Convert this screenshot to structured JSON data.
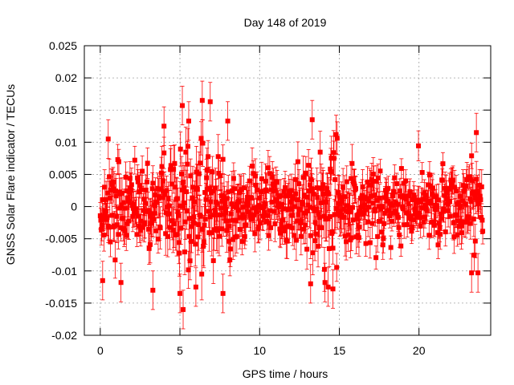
{
  "chart_data": {
    "type": "scatter",
    "title": "Day 148 of 2019",
    "xlabel": "GPS time / hours",
    "ylabel": "GNSS Solar Flare indicator / TECUs",
    "xlim": [
      -1,
      24.5
    ],
    "ylim": [
      -0.02,
      0.025
    ],
    "x_ticks": [
      0,
      5,
      10,
      15,
      20
    ],
    "x_tick_labels": [
      "0",
      "5",
      "10",
      "15",
      "20"
    ],
    "y_ticks": [
      -0.02,
      -0.015,
      -0.01,
      -0.005,
      0,
      0.005,
      0.01,
      0.015,
      0.02,
      0.025
    ],
    "y_tick_labels": [
      "-0.02",
      "-0.015",
      "-0.01",
      "-0.005",
      "0",
      "0.005",
      "0.01",
      "0.015",
      "0.02",
      "0.025"
    ],
    "grid": true,
    "series": [
      {
        "name": "GNSS solar flare indicator",
        "color": "#ff0000",
        "marker": "square",
        "error_bars": true,
        "x_range": [
          0,
          24
        ],
        "interval_minutes": 2,
        "notable_points": [
          {
            "x": 0.15,
            "y": -0.0115,
            "err": 0.003
          },
          {
            "x": 0.5,
            "y": 0.0105,
            "err": 0.003
          },
          {
            "x": 1.3,
            "y": -0.0118,
            "err": 0.003
          },
          {
            "x": 3.3,
            "y": -0.013,
            "err": 0.003
          },
          {
            "x": 4.0,
            "y": 0.0125,
            "err": 0.003
          },
          {
            "x": 5.0,
            "y": -0.0135,
            "err": 0.003
          },
          {
            "x": 5.15,
            "y": 0.0157,
            "err": 0.003
          },
          {
            "x": 5.2,
            "y": -0.016,
            "err": 0.003
          },
          {
            "x": 5.55,
            "y": 0.0133,
            "err": 0.003
          },
          {
            "x": 6.0,
            "y": -0.0125,
            "err": 0.003
          },
          {
            "x": 6.4,
            "y": 0.0165,
            "err": 0.003
          },
          {
            "x": 6.9,
            "y": 0.0163,
            "err": 0.003
          },
          {
            "x": 7.7,
            "y": -0.0135,
            "err": 0.003
          },
          {
            "x": 8.0,
            "y": 0.0133,
            "err": 0.003
          },
          {
            "x": 13.2,
            "y": -0.012,
            "err": 0.003
          },
          {
            "x": 13.3,
            "y": 0.0135,
            "err": 0.003
          },
          {
            "x": 14.1,
            "y": -0.0118,
            "err": 0.003
          },
          {
            "x": 14.3,
            "y": -0.0125,
            "err": 0.003
          },
          {
            "x": 14.6,
            "y": -0.0128,
            "err": 0.003
          },
          {
            "x": 14.8,
            "y": 0.0112,
            "err": 0.003
          },
          {
            "x": 23.3,
            "y": -0.0103,
            "err": 0.003
          },
          {
            "x": 23.6,
            "y": 0.0115,
            "err": 0.003
          },
          {
            "x": 23.7,
            "y": -0.0103,
            "err": 0.003
          }
        ]
      }
    ]
  }
}
